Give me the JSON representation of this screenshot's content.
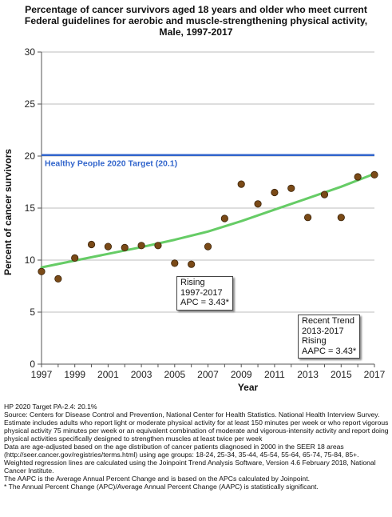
{
  "title_lines": [
    "Percentage of cancer survivors aged 18 years and older who meet current",
    "Federal guidelines for aerobic and muscle-strengthening physical activity,",
    "Male,  1997-2017"
  ],
  "chart_data": {
    "type": "scatter",
    "xlabel": "Year",
    "ylabel": "Percent of cancer survivors",
    "xlim": [
      1997,
      2017
    ],
    "ylim": [
      0,
      30
    ],
    "x_ticks": [
      1997,
      1999,
      2001,
      2003,
      2005,
      2007,
      2009,
      2011,
      2013,
      2015,
      2017
    ],
    "y_ticks": [
      0,
      5,
      10,
      15,
      20,
      25,
      30
    ],
    "grid": "horizontal",
    "points": {
      "x": [
        1997,
        1998,
        1999,
        2000,
        2001,
        2002,
        2003,
        2004,
        2005,
        2006,
        2007,
        2008,
        2009,
        2010,
        2011,
        2012,
        2013,
        2014,
        2015,
        2016,
        2017
      ],
      "y": [
        8.9,
        8.2,
        10.2,
        11.5,
        11.3,
        11.2,
        11.4,
        11.4,
        9.7,
        9.6,
        11.3,
        14.0,
        17.3,
        15.4,
        16.5,
        16.9,
        14.1,
        16.3,
        14.1,
        18.0,
        18.2
      ],
      "color": "#7a4a17"
    },
    "trend_line": {
      "x": [
        1997,
        1999,
        2001,
        2003,
        2005,
        2007,
        2009,
        2011,
        2013,
        2015,
        2017
      ],
      "y": [
        9.3,
        9.95,
        10.6,
        11.25,
        11.95,
        12.75,
        13.75,
        14.85,
        15.95,
        17.05,
        18.3
      ],
      "color": "#66cc66"
    },
    "target_line": {
      "value": 20.1,
      "label": "Healthy People 2020 Target (20.1)",
      "color": "#3366cc"
    },
    "annotations": [
      {
        "lines": [
          "Rising",
          "1997-2017",
          "APC =  3.43*"
        ]
      },
      {
        "lines": [
          "Recent Trend",
          "2013-2017",
          "Rising",
          "AAPC =  3.43*"
        ]
      }
    ]
  },
  "notes": [
    "HP 2020 Target PA-2.4: 20.1%",
    "Source: Centers for Disease Control and Prevention, National Center for Health Statistics. National Health Interview Survey.",
    "Estimate includes adults who report light or moderate physical activity for at least 150 minutes per week or who report vigorous physical activity 75 minutes per week or an equivalent combination of moderate and vigorous-intensity activity and report doing physical activities specifically designed to strengthen muscles at least twice per week",
    "Data are age-adjusted based on the age distribution of cancer patients diagnosed in 2000 in the SEER 18 areas (http://seer.cancer.gov/registries/terms.html) using age groups: 18-24, 25-34, 35-44, 45-54, 55-64, 65-74, 75-84, 85+.",
    "Weighted regression lines are calculated using the Joinpoint Trend Analysis Software, Version 4.6 February 2018, National Cancer Institute.",
    "The AAPC is the Average Annual Percent Change and is based on the APCs calculated by Joinpoint.",
    "* The Annual Percent Change (APC)/Average Annual Percent Change (AAPC) is statistically significant."
  ]
}
